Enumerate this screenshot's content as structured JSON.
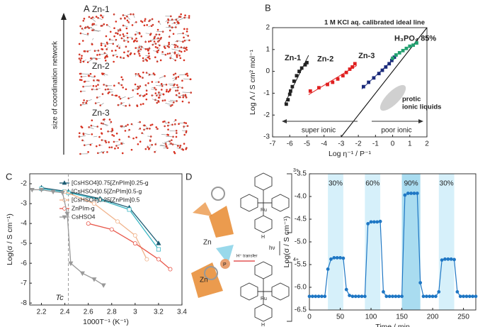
{
  "panel_labels": [
    "A",
    "B",
    "C",
    "D"
  ],
  "panel_a": {
    "labels": [
      "Zn-1",
      "Zn-2",
      "Zn-3"
    ],
    "axis_label": "size of coordination network"
  },
  "panel_d_diagram": {
    "zn": [
      "Zn",
      "Zn"
    ],
    "ru": [
      "Ru",
      "Ru"
    ],
    "p": "P",
    "transfer": "H⁺ transfer",
    "light": "hν",
    "charges": [
      "3+",
      "4+"
    ],
    "h": [
      "H",
      "H"
    ]
  },
  "chart_data": [
    {
      "type": "scatter",
      "xlabel": "Log η⁻¹ / P⁻¹",
      "ylabel": "Log Λ / S cm² mol⁻¹",
      "xlim": [
        -7,
        2
      ],
      "ylim": [
        -3,
        2
      ],
      "xticks": [
        -7,
        -6,
        -5,
        -4,
        -3,
        -2,
        -1,
        0,
        1,
        2
      ],
      "yticks": [
        -3,
        -2,
        -1,
        0,
        1,
        2
      ],
      "series": [
        {
          "name": "Zn-1",
          "color": "#222222",
          "x": [
            -6.2,
            -6.1,
            -6.0,
            -5.95,
            -5.85,
            -5.75,
            -5.6,
            -5.45,
            -5.3,
            -5.1,
            -5.0
          ],
          "values": [
            -1.5,
            -1.3,
            -1.05,
            -0.9,
            -0.7,
            -0.45,
            -0.2,
            0.0,
            0.15,
            0.3,
            0.4
          ]
        },
        {
          "name": "Zn-2",
          "color": "#e02020",
          "x": [
            -4.8,
            -4.3,
            -3.8,
            -3.5,
            -3.2,
            -2.9,
            -2.7,
            -2.5,
            -2.35,
            -2.2
          ],
          "values": [
            -0.9,
            -0.75,
            -0.6,
            -0.5,
            -0.35,
            -0.2,
            -0.05,
            0.1,
            0.2,
            0.35
          ]
        },
        {
          "name": "Zn-3",
          "color": "#1a2a7a",
          "x": [
            -1.7,
            -1.4,
            -1.1,
            -0.8,
            -0.6,
            -0.4,
            -0.2,
            -0.05,
            0.1
          ],
          "values": [
            -0.7,
            -0.5,
            -0.3,
            -0.1,
            0.05,
            0.2,
            0.35,
            0.5,
            0.65
          ]
        },
        {
          "name": "H₃PO₄ 85%",
          "color": "#22a070",
          "x": [
            0.0,
            0.2,
            0.4,
            0.6,
            0.8,
            1.0,
            1.2,
            1.4
          ],
          "values": [
            0.6,
            0.75,
            0.85,
            0.95,
            1.05,
            1.15,
            1.2,
            1.3
          ]
        }
      ],
      "ideal_line": {
        "x": [
          -3,
          2
        ],
        "values": [
          -3,
          2
        ]
      },
      "annotations": {
        "ideal": "1 M KCl aq. calibrated ideal line",
        "protic": [
          "protic",
          "ionic liquids"
        ],
        "super": "super ionic",
        "poor": "poor ionic"
      }
    },
    {
      "type": "line",
      "xlabel": "1000T⁻¹ (K⁻¹)",
      "ylabel": "Log(σ / S cm⁻¹)",
      "xlim": [
        2.1,
        3.4
      ],
      "ylim": [
        -8.1,
        -1.5
      ],
      "xticks": [
        2.2,
        2.4,
        2.6,
        2.8,
        3.0,
        3.2,
        3.4
      ],
      "yticks": [
        -8,
        -7,
        -6,
        -5,
        -4,
        -3,
        -2
      ],
      "legend": "upper right",
      "series": [
        {
          "name": "[CsHSO4]0.75[ZnPIm]0.25-g",
          "color": "#1d5c73",
          "marker": "triangle",
          "x": [
            2.2,
            2.43,
            2.7,
            2.95,
            3.2
          ],
          "values": [
            -2.2,
            -2.4,
            -2.75,
            -3.2,
            -5.0
          ]
        },
        {
          "name": "[CsHSO4]0.5[ZnPIm]0.5-g",
          "color": "#3bb7c4",
          "marker": "square",
          "x": [
            2.2,
            2.43,
            2.7,
            2.95,
            3.2
          ],
          "values": [
            -2.25,
            -2.45,
            -2.8,
            -3.3,
            -5.3
          ]
        },
        {
          "name": "[CsHSO4]0.25[ZnPIm]0.5",
          "color": "#f0b28a",
          "marker": "circle",
          "x": [
            2.4,
            2.65,
            2.85,
            3.0,
            3.1
          ],
          "values": [
            -2.4,
            -3.0,
            -3.9,
            -4.6,
            -5.8
          ]
        },
        {
          "name": "ZnPIm-g",
          "color": "#e8574a",
          "marker": "circle",
          "x": [
            2.6,
            2.8,
            3.0,
            3.2,
            3.3
          ],
          "values": [
            -4.0,
            -4.3,
            -5.0,
            -5.8,
            -6.3
          ]
        },
        {
          "name": "CsHSO4",
          "color": "#999999",
          "marker": "triangle-down",
          "x": [
            2.12,
            2.2,
            2.3,
            2.38,
            2.42,
            2.45,
            2.55,
            2.65,
            2.73
          ],
          "values": [
            -2.3,
            -2.3,
            -2.4,
            -2.45,
            -3.5,
            -6.0,
            -6.5,
            -6.8,
            -7.1
          ]
        }
      ],
      "tc": {
        "label": "Tc",
        "x": 2.43
      }
    },
    {
      "type": "line",
      "xlabel": "Time / min",
      "ylabel": "Log(σ / S cm⁻¹)",
      "xlim": [
        0,
        270
      ],
      "ylim": [
        -6.5,
        -3.5
      ],
      "xticks": [
        0,
        50,
        100,
        150,
        200,
        250
      ],
      "yticks": [
        -6.5,
        {
          "value": -6,
          "label": "-6.0"
        },
        -5.5,
        {
          "value": -5,
          "label": "-5.0"
        },
        -4.5,
        {
          "value": -4,
          "label": "-4.0"
        },
        -3.5
      ],
      "highlights": [
        {
          "start": 30,
          "end": 55,
          "label": "30%"
        },
        {
          "start": 90,
          "end": 115,
          "label": "60%"
        },
        {
          "start": 150,
          "end": 180,
          "label": "90%"
        },
        {
          "start": 210,
          "end": 235,
          "label": "30%"
        }
      ],
      "series": [
        {
          "color": "#1f77c4",
          "x": [
            0,
            5,
            10,
            15,
            20,
            25,
            30,
            35,
            40,
            45,
            50,
            55,
            60,
            65,
            70,
            75,
            80,
            85,
            90,
            95,
            100,
            105,
            110,
            115,
            120,
            125,
            130,
            135,
            140,
            145,
            150,
            155,
            160,
            165,
            170,
            175,
            180,
            185,
            190,
            195,
            200,
            205,
            210,
            215,
            220,
            225,
            230,
            235,
            240,
            245,
            250,
            255,
            260,
            265,
            270
          ],
          "values": [
            -6.2,
            -6.2,
            -6.2,
            -6.2,
            -6.2,
            -6.2,
            -5.6,
            -5.38,
            -5.35,
            -5.35,
            -5.35,
            -5.36,
            -6.05,
            -6.18,
            -6.2,
            -6.2,
            -6.2,
            -6.2,
            -6.2,
            -4.6,
            -4.56,
            -4.56,
            -4.56,
            -4.55,
            -6.1,
            -6.2,
            -6.2,
            -6.2,
            -6.2,
            -6.2,
            -6.2,
            -3.97,
            -3.93,
            -3.93,
            -3.93,
            -3.93,
            -5.9,
            -6.2,
            -6.2,
            -6.2,
            -6.2,
            -6.2,
            -6.1,
            -5.4,
            -5.38,
            -5.38,
            -5.38,
            -5.39,
            -6.1,
            -6.2,
            -6.2,
            -6.2,
            -6.2,
            -6.2,
            -6.2
          ]
        }
      ]
    }
  ]
}
